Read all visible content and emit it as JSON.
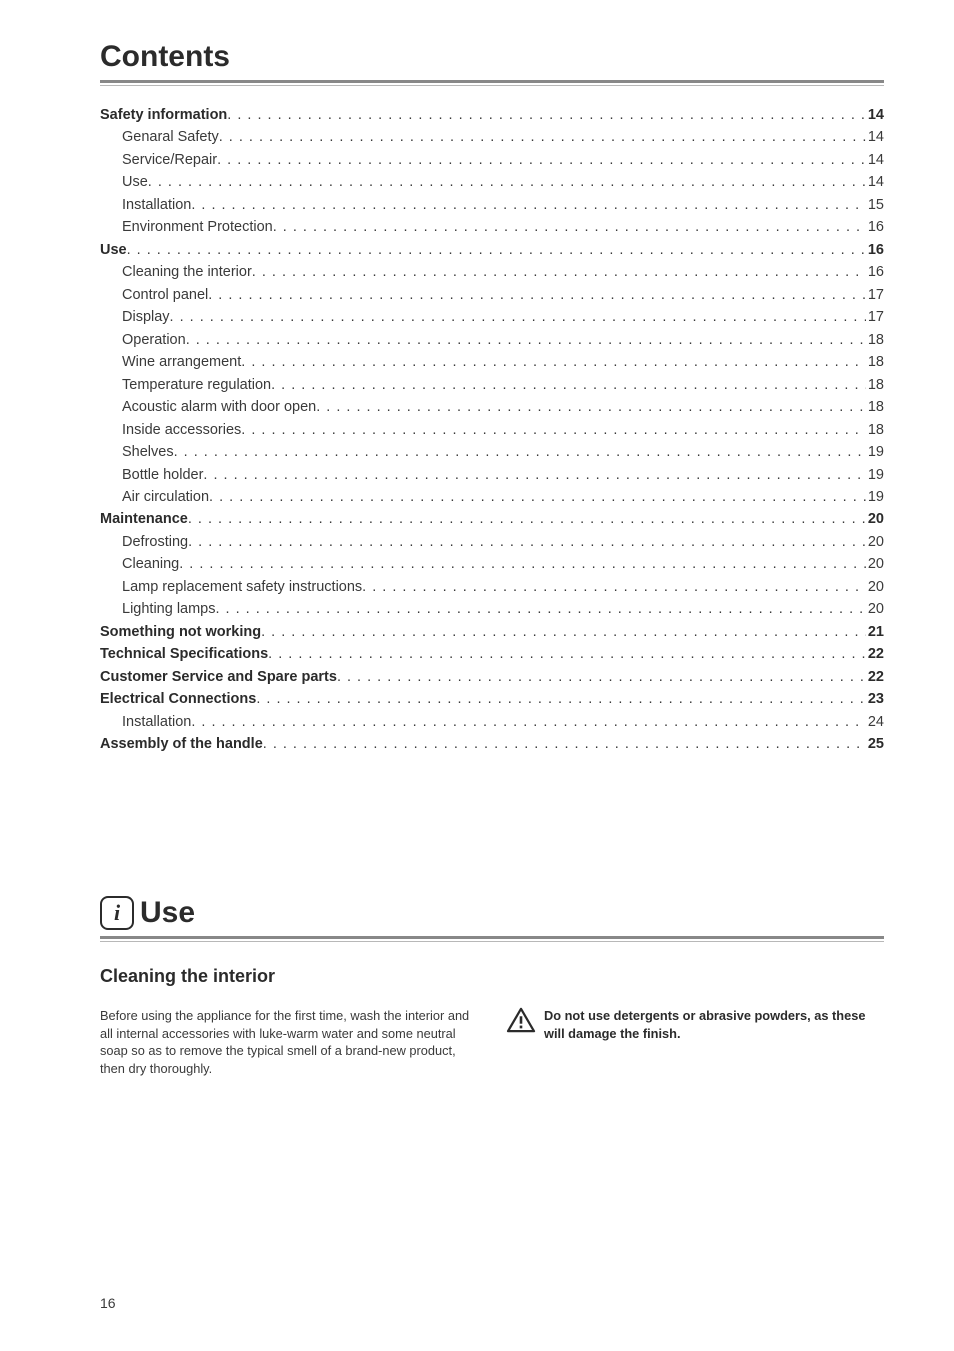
{
  "contents": {
    "title": "Contents",
    "items": [
      {
        "label": "Safety information",
        "page": "14",
        "bold": true,
        "indent": false
      },
      {
        "label": "Genaral Safety",
        "page": "14",
        "bold": false,
        "indent": true
      },
      {
        "label": "Service/Repair",
        "page": "14",
        "bold": false,
        "indent": true
      },
      {
        "label": "Use",
        "page": "14",
        "bold": false,
        "indent": true
      },
      {
        "label": "Installation",
        "page": "15",
        "bold": false,
        "indent": true
      },
      {
        "label": "Environment Protection",
        "page": "16",
        "bold": false,
        "indent": true
      },
      {
        "label": "Use",
        "page": "16",
        "bold": true,
        "indent": false
      },
      {
        "label": "Cleaning the interior",
        "page": "16",
        "bold": false,
        "indent": true
      },
      {
        "label": "Control panel",
        "page": "17",
        "bold": false,
        "indent": true
      },
      {
        "label": "Display",
        "page": "17",
        "bold": false,
        "indent": true
      },
      {
        "label": "Operation",
        "page": "18",
        "bold": false,
        "indent": true
      },
      {
        "label": "Wine arrangement",
        "page": "18",
        "bold": false,
        "indent": true
      },
      {
        "label": "Temperature regulation",
        "page": "18",
        "bold": false,
        "indent": true
      },
      {
        "label": "Acoustic alarm with door open",
        "page": "18",
        "bold": false,
        "indent": true
      },
      {
        "label": "Inside accessories",
        "page": "18",
        "bold": false,
        "indent": true
      },
      {
        "label": "Shelves",
        "page": "19",
        "bold": false,
        "indent": true
      },
      {
        "label": "Bottle holder",
        "page": "19",
        "bold": false,
        "indent": true
      },
      {
        "label": "Air circulation",
        "page": "19",
        "bold": false,
        "indent": true
      },
      {
        "label": "Maintenance",
        "page": "20",
        "bold": true,
        "indent": false
      },
      {
        "label": "Defrosting",
        "page": "20",
        "bold": false,
        "indent": true
      },
      {
        "label": "Cleaning",
        "page": "20",
        "bold": false,
        "indent": true
      },
      {
        "label": "Lamp replacement safety instructions",
        "page": "20",
        "bold": false,
        "indent": true
      },
      {
        "label": "Lighting lamps",
        "page": "20",
        "bold": false,
        "indent": true
      },
      {
        "label": "Something not working",
        "page": "21",
        "bold": true,
        "indent": false
      },
      {
        "label": "Technical Specifications",
        "page": "22",
        "bold": true,
        "indent": false
      },
      {
        "label": "Customer Service and Spare parts",
        "page": "22",
        "bold": true,
        "indent": false
      },
      {
        "label": "Electrical Connections",
        "page": "23",
        "bold": true,
        "indent": false
      },
      {
        "label": "Installation",
        "page": "24",
        "bold": false,
        "indent": true
      },
      {
        "label": "Assembly of the handle",
        "page": "25",
        "bold": true,
        "indent": false
      }
    ]
  },
  "use_section": {
    "info_glyph": "i",
    "title": "Use",
    "sub_heading": "Cleaning the interior",
    "left_paragraph": "Before using the appliance for the first time, wash the interior and all internal accessories with luke-warm water and some neutral soap so as to remove the typical smell of a brand-new product, then dry thoroughly.",
    "warning_text": "Do not use detergents or abrasive powders, as these will damage the finish."
  },
  "page_number": "16",
  "colors": {
    "text": "#3a3a3a",
    "heading": "#2b2b2b",
    "hr_thick": "#888888",
    "hr_thin": "#b8b8b8",
    "bg": "#ffffff"
  }
}
